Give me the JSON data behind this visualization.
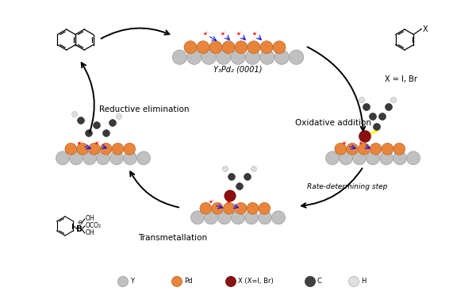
{
  "background_color": "#ffffff",
  "legend_items": [
    {
      "label": "Y",
      "color": "#c0c0c0",
      "edge": "#909090"
    },
    {
      "label": "Pd",
      "color": "#e8853a",
      "edge": "#b05818"
    },
    {
      "label": "X (X=I, Br)",
      "color": "#8b1010",
      "edge": "#5a0000"
    },
    {
      "label": "C",
      "color": "#404040",
      "edge": "#222222"
    },
    {
      "label": "H",
      "color": "#e0e0e0",
      "edge": "#aaaaaa"
    }
  ],
  "label_top_surface": "Y₃Pd₂ (0001)",
  "label_x": "X = I, Br",
  "label_ox": "Oxidative addition",
  "label_rds": "Rate-determining step",
  "label_trans": "Transmetallation",
  "label_red": "Reductive elimination",
  "atom_Y": "#c0c0c0",
  "atom_Pd": "#e8853a",
  "atom_X": "#8b1010",
  "atom_C": "#3a3a3a",
  "atom_H": "#e0e0e0",
  "atom_Y_ec": "#909090",
  "atom_Pd_ec": "#b05818",
  "atom_X_ec": "#5a0000",
  "atom_C_ec": "#222222",
  "atom_H_ec": "#aaaaaa"
}
